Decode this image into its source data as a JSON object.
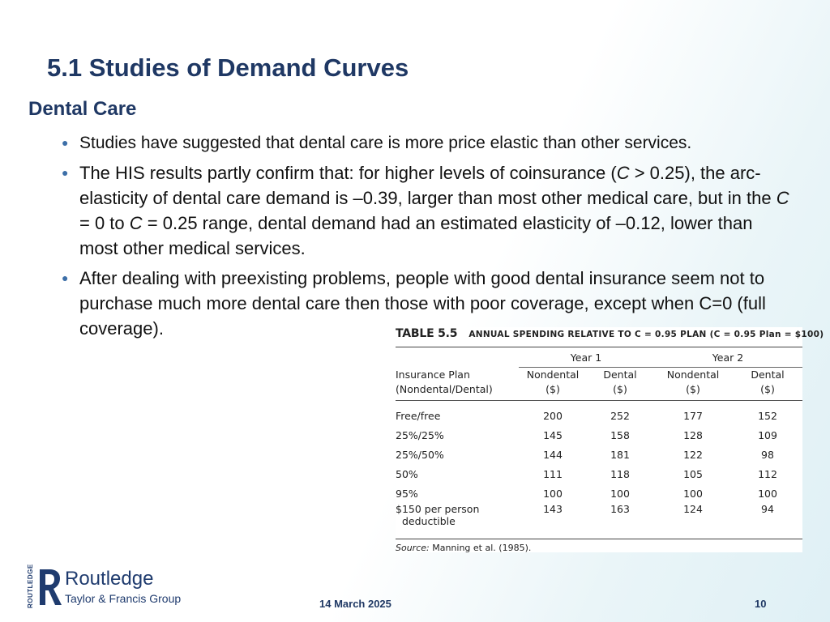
{
  "slide": {
    "title": "5.1 Studies of Demand Curves",
    "subtitle": "Dental Care"
  },
  "bullets": [
    {
      "text": "Studies have suggested that dental care is more price elastic than other services."
    },
    {
      "p1": "The HIS results partly confirm that:  for higher levels of coinsurance (",
      "c1": "C",
      "p2": " > 0.25), the arc-elasticity of dental care demand is –0.39, larger than most other medical care, but in the ",
      "c2": "C",
      "p3": " = 0 to ",
      "c3": "C",
      "p4": " = 0.25 range, dental demand had an estimated elasticity of –0.12, lower than most other medical services."
    },
    {
      "text": "After dealing with preexisting problems, people with good dental insurance seem not to purchase much more dental care then those with poor coverage, except when C=0 (full coverage)."
    }
  ],
  "table": {
    "number": "TABLE 5.5",
    "caption": "ANNUAL SPENDING RELATIVE TO C = 0.95 PLAN (C = 0.95 Plan = $100)",
    "year1": "Year 1",
    "year2": "Year 2",
    "col_plan_line1": "Insurance Plan",
    "col_plan_line2": "(Nondental/Dental)",
    "col_nondental": "Nondental",
    "col_dental": "Dental",
    "col_unit": "($)",
    "rows": [
      {
        "plan": "Free/free",
        "y1_nondental": "200",
        "y1_dental": "252",
        "y2_nondental": "177",
        "y2_dental": "152"
      },
      {
        "plan": "25%/25%",
        "y1_nondental": "145",
        "y1_dental": "158",
        "y2_nondental": "128",
        "y2_dental": "109"
      },
      {
        "plan": "25%/50%",
        "y1_nondental": "144",
        "y1_dental": "181",
        "y2_nondental": "122",
        "y2_dental": "98"
      },
      {
        "plan": "50%",
        "y1_nondental": "111",
        "y1_dental": "118",
        "y2_nondental": "105",
        "y2_dental": "112"
      },
      {
        "plan": "95%",
        "y1_nondental": "100",
        "y1_dental": "100",
        "y2_nondental": "100",
        "y2_dental": "100"
      },
      {
        "plan": "$150 per person",
        "plan_line2": "deductible",
        "y1_nondental": "143",
        "y1_dental": "163",
        "y2_nondental": "124",
        "y2_dental": "94"
      }
    ],
    "source_label": "Source:",
    "source_text": " Manning et al. (1985)."
  },
  "footer": {
    "publisher": "Routledge",
    "publisher_group": "Taylor & Francis Group",
    "publisher_side": "ROUTLEDGE",
    "date": "14 March 2025",
    "page": "10"
  },
  "colors": {
    "title": "#1f3864",
    "bullet": "#3d6fa8",
    "logo": "#1f3b6e"
  }
}
